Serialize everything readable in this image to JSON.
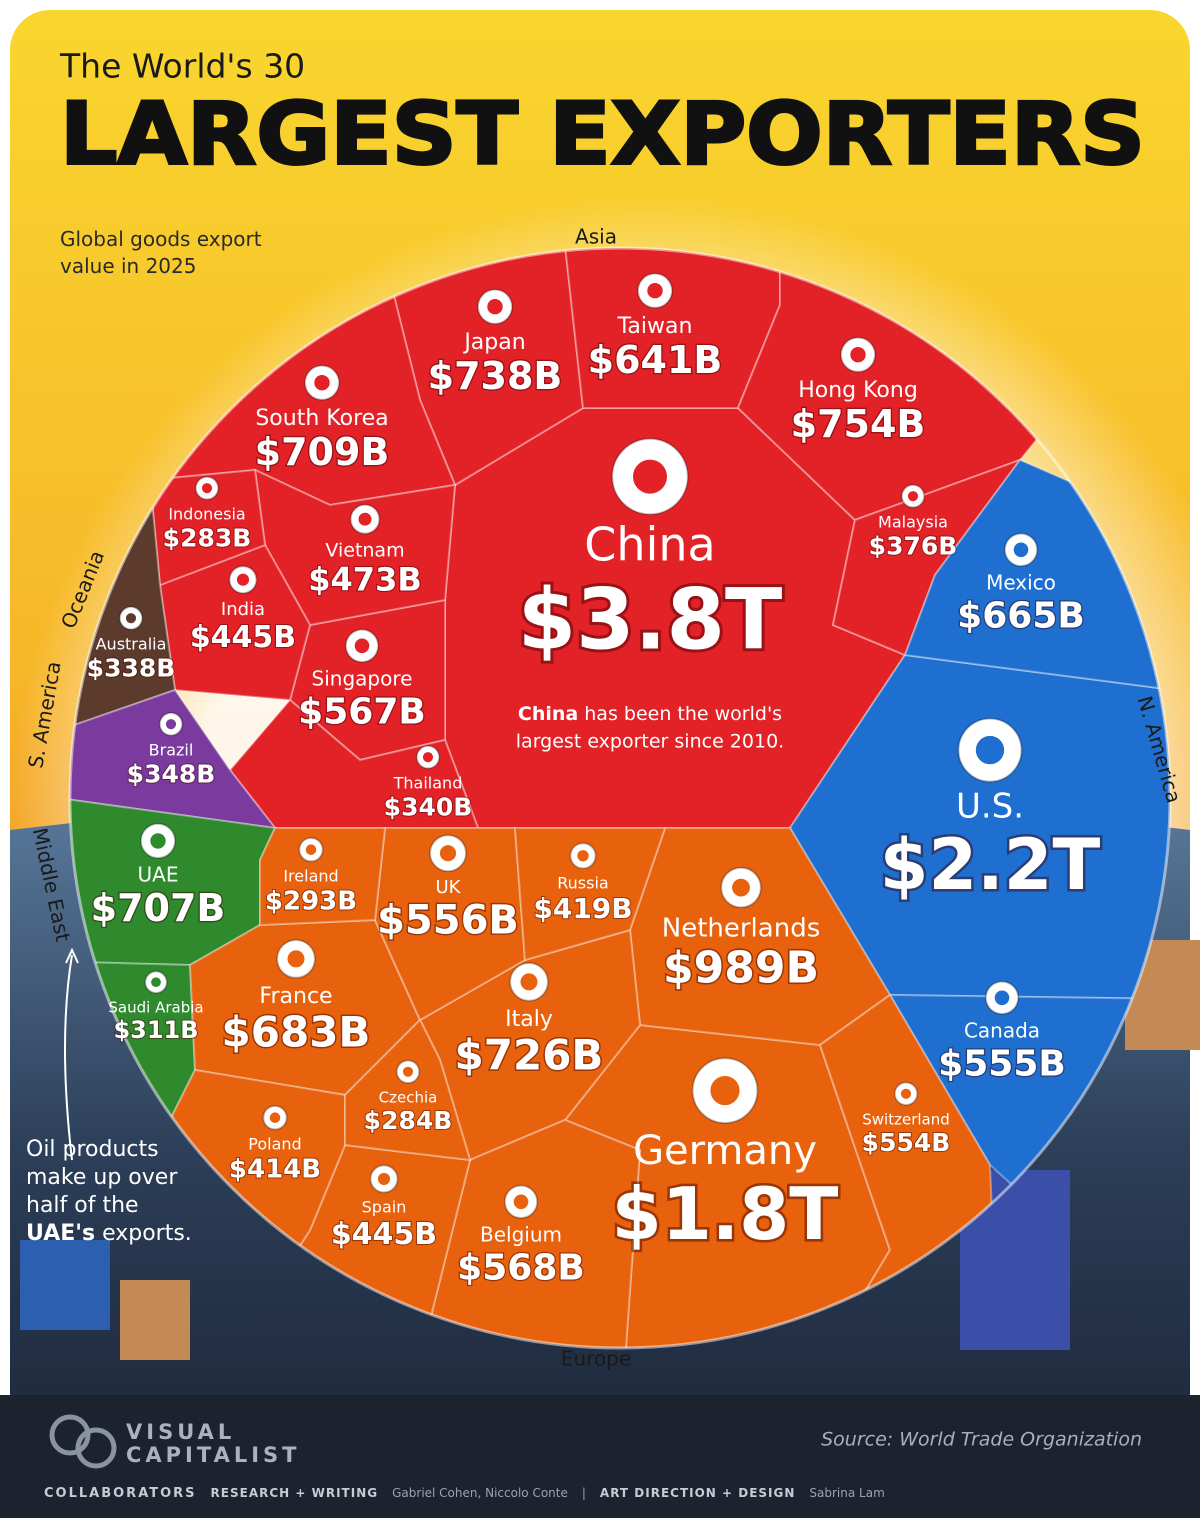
{
  "chart_data": {
    "type": "voronoi",
    "title": "The World's 30",
    "title_emphasis": "LARGEST EXPORTERS",
    "subtitle": "Global goods export value in 2025",
    "groups": [
      {
        "name": "Asia",
        "color": "#e32228",
        "categories": [
          "China",
          "Japan",
          "Taiwan",
          "Hong Kong",
          "South Korea",
          "Singapore",
          "Vietnam",
          "India",
          "Malaysia",
          "Thailand",
          "Indonesia"
        ],
        "values": [
          3800,
          738,
          641,
          754,
          709,
          567,
          473,
          445,
          376,
          340,
          283
        ],
        "value_labels": [
          "$3.8T",
          "$738B",
          "$641B",
          "$754B",
          "$709B",
          "$567B",
          "$473B",
          "$445B",
          "$376B",
          "$340B",
          "$283B"
        ]
      },
      {
        "name": "Oceania",
        "color": "#5c3a2c",
        "categories": [
          "Australia"
        ],
        "values": [
          338
        ],
        "value_labels": [
          "$338B"
        ]
      },
      {
        "name": "S. America",
        "color": "#7a3a9e",
        "categories": [
          "Brazil"
        ],
        "values": [
          348
        ],
        "value_labels": [
          "$348B"
        ]
      },
      {
        "name": "Middle East",
        "color": "#2f8a2e",
        "categories": [
          "UAE",
          "Saudi Arabia"
        ],
        "values": [
          707,
          311
        ],
        "value_labels": [
          "$707B",
          "$311B"
        ]
      },
      {
        "name": "N. America",
        "color": "#1e6fcf",
        "categories": [
          "U.S.",
          "Mexico",
          "Canada"
        ],
        "values": [
          2200,
          665,
          555
        ],
        "value_labels": [
          "$2.2T",
          "$665B",
          "$555B"
        ]
      },
      {
        "name": "Europe",
        "color": "#e8620e",
        "categories": [
          "Germany",
          "Netherlands",
          "Italy",
          "France",
          "Belgium",
          "UK",
          "Switzerland",
          "Spain",
          "Russia",
          "Poland",
          "Ireland",
          "Czechia"
        ],
        "values": [
          1800,
          989,
          726,
          683,
          568,
          556,
          554,
          445,
          419,
          414,
          293,
          284
        ],
        "value_labels": [
          "$1.8T",
          "$989B",
          "$726B",
          "$683B",
          "$568B",
          "$556B",
          "$554B",
          "$445B",
          "$419B",
          "$414B",
          "$293B",
          "$284B"
        ]
      }
    ],
    "china_note": {
      "bold": "China",
      "text": "has been the world's",
      "line2": "largest exporter since 2010."
    },
    "uae_note": {
      "text": "Oil products make up over half of the",
      "bold": "UAE's",
      "tail": "exports."
    },
    "source": "Source: World Trade Organization",
    "brand": [
      "VISUAL",
      "CAPITALIST"
    ],
    "credits": [
      "COLLABORATORS",
      "RESEARCH + WRITING",
      "Gabriel Cohen, Niccolo Conte",
      "|",
      "ART DIRECTION + DESIGN",
      "Sabrina Lam"
    ]
  }
}
